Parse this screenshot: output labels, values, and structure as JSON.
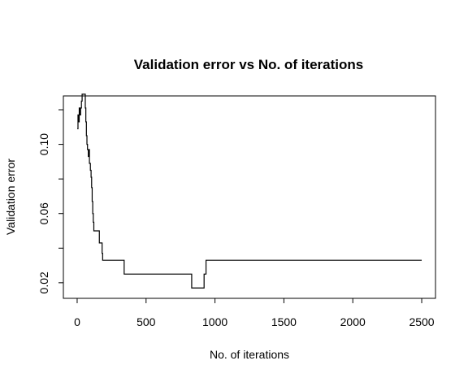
{
  "chart_data": {
    "type": "line",
    "title": "Validation error vs No. of iterations",
    "xlabel": "No. of iterations",
    "ylabel": "Validation error",
    "xlim": [
      -100,
      2600
    ],
    "ylim": [
      0.011,
      0.128
    ],
    "x_ticks": [
      0,
      500,
      1000,
      1500,
      2000,
      2500
    ],
    "x_tick_labels": [
      "0",
      "500",
      "1000",
      "1500",
      "2000",
      "2500"
    ],
    "y_ticks": [
      0.02,
      0.04,
      0.06,
      0.08,
      0.1,
      0.12
    ],
    "y_tick_labels": [
      "0.02",
      "",
      "0.06",
      "",
      "0.10",
      ""
    ],
    "grid": false,
    "line_style": "steps",
    "series": [
      {
        "points": [
          [
            1,
            0.109
          ],
          [
            5,
            0.109
          ],
          [
            6,
            0.117
          ],
          [
            10,
            0.117
          ],
          [
            11,
            0.113
          ],
          [
            14,
            0.113
          ],
          [
            15,
            0.121
          ],
          [
            20,
            0.121
          ],
          [
            21,
            0.117
          ],
          [
            24,
            0.117
          ],
          [
            25,
            0.121
          ],
          [
            30,
            0.121
          ],
          [
            31,
            0.125
          ],
          [
            35,
            0.125
          ],
          [
            36,
            0.129
          ],
          [
            58,
            0.129
          ],
          [
            59,
            0.121
          ],
          [
            62,
            0.121
          ],
          [
            63,
            0.113
          ],
          [
            66,
            0.113
          ],
          [
            67,
            0.105
          ],
          [
            70,
            0.105
          ],
          [
            71,
            0.1
          ],
          [
            74,
            0.1
          ],
          [
            75,
            0.097
          ],
          [
            80,
            0.097
          ],
          [
            81,
            0.093
          ],
          [
            84,
            0.093
          ],
          [
            85,
            0.097
          ],
          [
            88,
            0.097
          ],
          [
            89,
            0.089
          ],
          [
            95,
            0.089
          ],
          [
            96,
            0.085
          ],
          [
            100,
            0.085
          ],
          [
            101,
            0.081
          ],
          [
            104,
            0.081
          ],
          [
            105,
            0.075
          ],
          [
            108,
            0.075
          ],
          [
            109,
            0.067
          ],
          [
            112,
            0.067
          ],
          [
            113,
            0.06
          ],
          [
            116,
            0.06
          ],
          [
            117,
            0.055
          ],
          [
            120,
            0.055
          ],
          [
            121,
            0.05
          ],
          [
            160,
            0.05
          ],
          [
            161,
            0.043
          ],
          [
            180,
            0.043
          ],
          [
            181,
            0.037
          ],
          [
            184,
            0.037
          ],
          [
            185,
            0.033
          ],
          [
            340,
            0.033
          ],
          [
            341,
            0.025
          ],
          [
            830,
            0.025
          ],
          [
            831,
            0.017
          ],
          [
            920,
            0.017
          ],
          [
            921,
            0.025
          ],
          [
            934,
            0.025
          ],
          [
            935,
            0.033
          ],
          [
            2500,
            0.033
          ]
        ]
      }
    ]
  }
}
